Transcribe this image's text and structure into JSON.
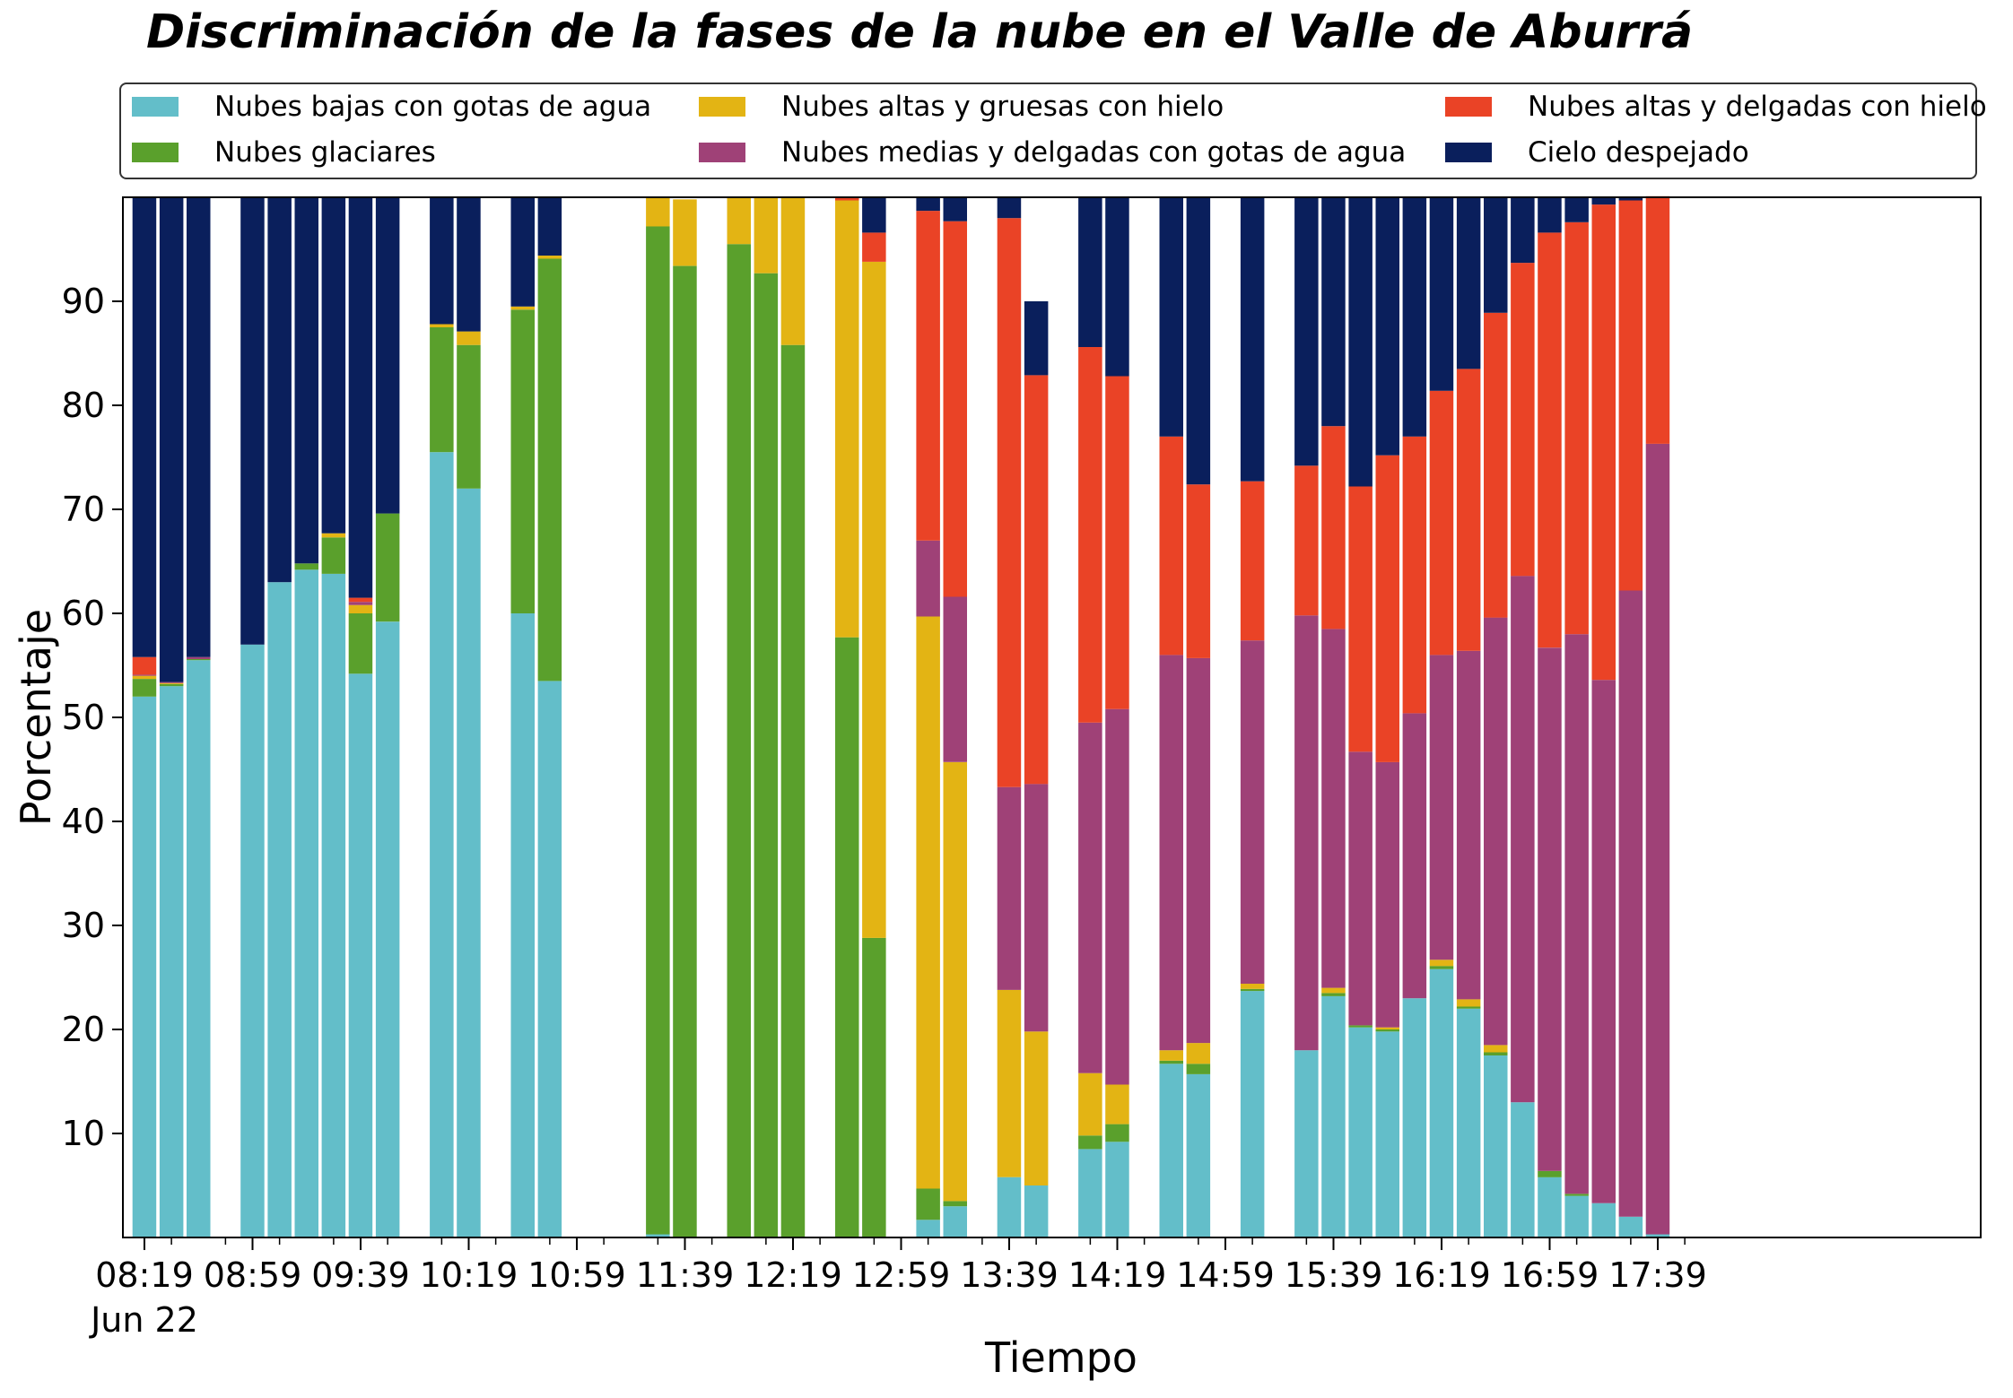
{
  "chart_data": {
    "type": "bar",
    "stacked": true,
    "title": "Discriminación de la fases de la nube en el Valle de Aburrá",
    "xlabel": "Tiempo",
    "ylabel": "Porcentaje",
    "ylim": [
      0,
      100
    ],
    "yticks": [
      10,
      20,
      30,
      40,
      50,
      60,
      70,
      80,
      90
    ],
    "grid": false,
    "legend_position": "top",
    "x_tick_labels": [
      "08:19",
      "08:59",
      "09:39",
      "10:19",
      "10:59",
      "11:39",
      "12:19",
      "12:59",
      "13:39",
      "14:19",
      "14:59",
      "15:39",
      "16:19",
      "16:59",
      "17:39"
    ],
    "x_date_label": "Jun 22",
    "x_minutes_start": 499,
    "x_minutes_end": 1070,
    "x": [
      499,
      509,
      519,
      539,
      549,
      559,
      569,
      579,
      589,
      609,
      619,
      639,
      649,
      689,
      699,
      719,
      729,
      739,
      759,
      769,
      789,
      799,
      819,
      829,
      849,
      859,
      879,
      889,
      909,
      929,
      939,
      949,
      959,
      969,
      979,
      989,
      999,
      1009,
      1019,
      1029,
      1039,
      1049,
      1059
    ],
    "series": [
      {
        "name": "Nubes bajas con gotas de agua",
        "color": "#63bec9",
        "values": [
          52,
          53,
          55.5,
          57,
          63,
          64.2,
          63.8,
          54.2,
          59.2,
          75.5,
          72,
          60,
          53.5,
          0.3,
          0,
          0,
          0,
          0,
          0,
          0,
          1.7,
          3,
          5.8,
          5,
          8.5,
          9.2,
          16.7,
          15.7,
          23.7,
          18,
          23.2,
          20.2,
          19.8,
          23,
          25.8,
          22,
          17.5,
          13,
          5.8,
          4,
          3.3,
          2,
          0.3
        ]
      },
      {
        "name": "Nubes glaciares",
        "color": "#5aa02c",
        "values": [
          1.7,
          0.2,
          0.1,
          0,
          0,
          0.6,
          3.5,
          5.8,
          10.4,
          12,
          13.8,
          29.2,
          40.6,
          96.9,
          93.4,
          95.5,
          92.7,
          85.8,
          57.7,
          28.8,
          3,
          0.5,
          0,
          0,
          1.3,
          1.7,
          0.3,
          1,
          0.2,
          0,
          0.3,
          0.2,
          0.2,
          0,
          0.3,
          0.2,
          0.3,
          0,
          0.6,
          0.2,
          0,
          0,
          0
        ]
      },
      {
        "name": "Nubes altas y gruesas con hielo",
        "color": "#e3b414",
        "values": [
          0.3,
          0.1,
          0,
          0,
          0,
          0,
          0.4,
          0.8,
          0,
          0.3,
          1.3,
          0.3,
          0.3,
          2.8,
          6.4,
          4.5,
          7.3,
          14.2,
          42,
          65,
          55,
          42.2,
          18,
          14.8,
          6,
          3.8,
          1,
          2,
          0.5,
          0,
          0.5,
          0,
          0.2,
          0,
          0.6,
          0.7,
          0.7,
          0,
          0,
          0,
          0,
          0,
          0
        ]
      },
      {
        "name": "Nubes medias y delgadas con gotas de agua",
        "color": "#9f4177",
        "values": [
          0.1,
          0.1,
          0.2,
          0,
          0,
          0,
          0,
          0.3,
          0,
          0,
          0,
          0,
          0,
          0,
          0,
          0,
          0,
          0,
          0,
          0,
          7.3,
          15.9,
          19.5,
          23.8,
          33.7,
          36.1,
          38,
          37,
          33,
          41.8,
          34.5,
          26.3,
          25.5,
          27.4,
          29.3,
          33.5,
          41.1,
          50.6,
          50.3,
          53.8,
          50.3,
          60.2,
          76
        ]
      },
      {
        "name": "Nubes altas y delgadas con hielo",
        "color": "#ea4326",
        "values": [
          1.7,
          0,
          0,
          0,
          0,
          0,
          0,
          0.4,
          0,
          0,
          0,
          0,
          0,
          0,
          0,
          0,
          0,
          0,
          0.3,
          2.8,
          31.7,
          36.1,
          54.7,
          39.3,
          36.1,
          32,
          21,
          16.7,
          15.3,
          14.4,
          19.5,
          25.5,
          29.5,
          26.6,
          25.4,
          27.1,
          29.3,
          30.1,
          39.9,
          39.6,
          45.7,
          37.5,
          23.8
        ]
      },
      {
        "name": "Cielo despejado",
        "color": "#0a1f5c",
        "values": [
          44.2,
          46.6,
          44.2,
          43,
          37,
          35.2,
          32.3,
          38.5,
          30.4,
          12.2,
          12.9,
          10.5,
          5.6,
          0,
          0,
          0,
          0,
          0,
          0,
          3.4,
          1.3,
          2.3,
          2,
          7.1,
          14.4,
          17.2,
          23,
          27.6,
          27.3,
          25.8,
          22,
          27.8,
          24.8,
          23,
          18.6,
          16.5,
          11.1,
          6.3,
          3.4,
          2.4,
          0.7,
          0.3,
          0
        ]
      }
    ]
  }
}
